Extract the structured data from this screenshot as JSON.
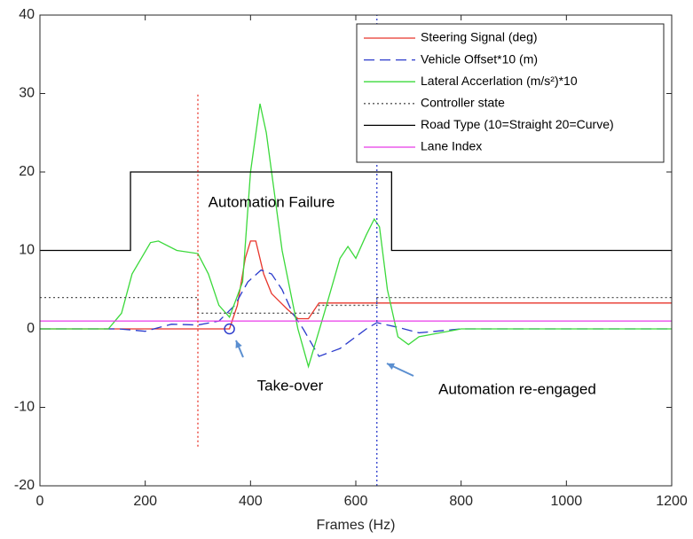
{
  "chart_data": {
    "type": "line",
    "xlabel": "Frames (Hz)",
    "xlim": [
      0,
      1200
    ],
    "xticks": [
      0,
      200,
      400,
      600,
      800,
      1000,
      1200
    ],
    "ylim": [
      -20,
      40
    ],
    "yticks": [
      -20,
      -10,
      0,
      10,
      20,
      30,
      40
    ],
    "legend": "upper right",
    "series": [
      {
        "name": "Steering Signal (deg)",
        "color": "#e8352b",
        "dash": "solid",
        "x": [
          0,
          360,
          375,
          390,
          400,
          410,
          425,
          440,
          455,
          470,
          490,
          510,
          530,
          1200
        ],
        "values": [
          0,
          0,
          3,
          9,
          11.2,
          11.2,
          7,
          4.5,
          3.5,
          2.5,
          1.3,
          1.3,
          3.3,
          3.3
        ]
      },
      {
        "name": "Vehicle Offset*10 (m)",
        "color": "#2b3bcc",
        "dash": "dashed",
        "x": [
          0,
          150,
          200,
          250,
          300,
          340,
          370,
          395,
          420,
          440,
          460,
          480,
          500,
          530,
          570,
          620,
          640,
          680,
          720,
          800,
          1200
        ],
        "values": [
          0,
          0,
          -0.3,
          0.6,
          0.5,
          1,
          3,
          6,
          7.5,
          7,
          5,
          2,
          0,
          -3.5,
          -2.5,
          0,
          0.8,
          0.2,
          -0.5,
          0,
          0
        ]
      },
      {
        "name": "Lateral Accerlation (m/s²)*10",
        "color": "#3bd93b",
        "dash": "solid",
        "x": [
          0,
          130,
          155,
          175,
          210,
          225,
          260,
          300,
          320,
          340,
          360,
          385,
          400,
          418,
          430,
          460,
          490,
          510,
          540,
          570,
          585,
          600,
          620,
          635,
          645,
          660,
          680,
          700,
          720,
          800,
          1200
        ],
        "values": [
          0,
          0,
          2,
          7,
          11,
          11.2,
          10,
          9.6,
          7,
          3,
          1.5,
          6,
          20,
          28.7,
          25,
          10,
          0,
          -4.8,
          2,
          9,
          10.5,
          9,
          12,
          14,
          13,
          5,
          -1,
          -2,
          -1,
          0,
          0
        ]
      },
      {
        "name": "Controller state",
        "color": "#555555",
        "dash": "dotted",
        "x": [
          0,
          300,
          300,
          530,
          530,
          640,
          640,
          1200
        ],
        "values": [
          4,
          4,
          2,
          2,
          3,
          3,
          4,
          4
        ]
      },
      {
        "name": "Road Type (10=Straight 20=Curve)",
        "color": "#000000",
        "dash": "solid",
        "x": [
          0,
          172,
          172,
          668,
          668,
          1200
        ],
        "values": [
          10,
          10,
          20,
          20,
          10,
          10
        ]
      },
      {
        "name": "Lane Index",
        "color": "#e83be8",
        "dash": "solid",
        "x": [
          0,
          1200
        ],
        "values": [
          1,
          1
        ]
      }
    ],
    "vlines": [
      {
        "x": 300,
        "ymin": -15,
        "ymax": 30,
        "color": "#e8352b"
      },
      {
        "x": 640,
        "ymin": -20,
        "ymax": 40,
        "color": "#2b3bcc"
      }
    ],
    "marker": {
      "x": 360,
      "y": 0,
      "color": "#2b3bcc"
    },
    "annotations": [
      "Automation Failure",
      "Take-over",
      "Automation re-engaged"
    ]
  }
}
